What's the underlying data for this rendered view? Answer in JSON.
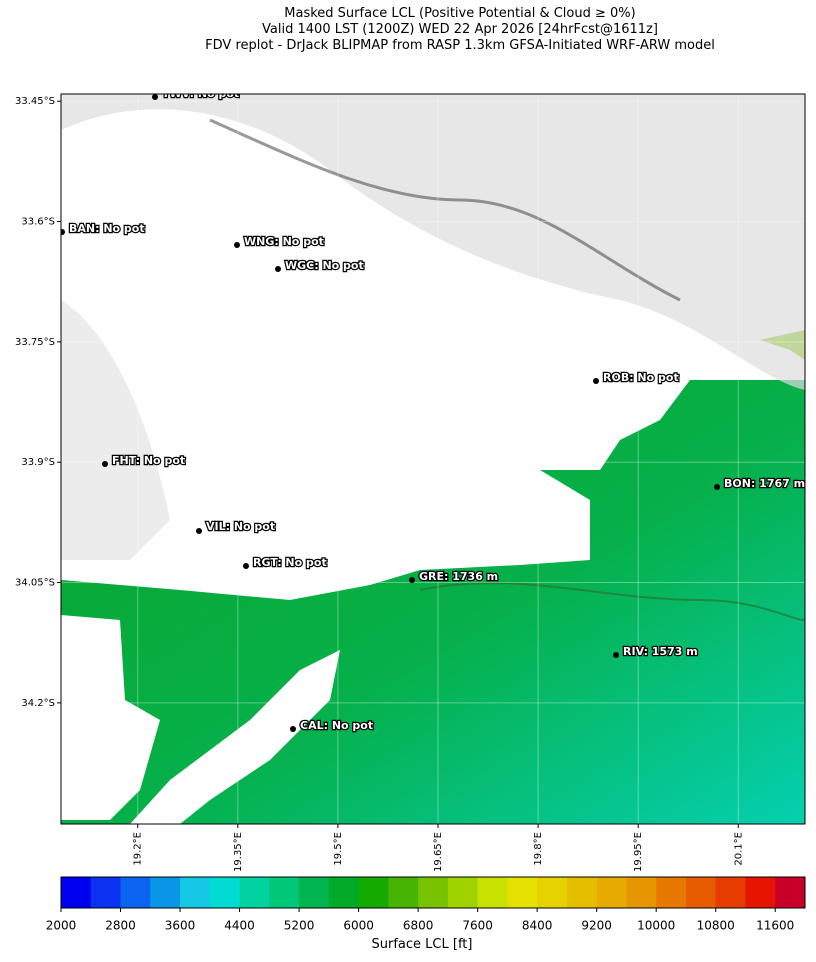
{
  "title": [
    "Masked Surface LCL (Positive Potential & Cloud ≥ 0%)",
    "Valid 1400 LST (1200Z) WED 22 Apr 2026 [24hrFcst@1611z]",
    "FDV replot - DrJack BLIPMAP from RASP 1.3km GFSA-Initiated WRF-ARW model"
  ],
  "map": {
    "xlim": [
      19.085,
      20.2
    ],
    "ylim": [
      -34.351,
      -33.441
    ],
    "xticks": [
      {
        "value": 19.2,
        "label": "19.2°E"
      },
      {
        "value": 19.35,
        "label": "19.35°E"
      },
      {
        "value": 19.5,
        "label": "19.5°E"
      },
      {
        "value": 19.65,
        "label": "19.65°E"
      },
      {
        "value": 19.8,
        "label": "19.8°E"
      },
      {
        "value": 19.95,
        "label": "19.95°E"
      },
      {
        "value": 20.1,
        "label": "20.1°E"
      }
    ],
    "yticks": [
      {
        "value": -33.45,
        "label": "33.45°S"
      },
      {
        "value": -33.6,
        "label": "33.6°S"
      },
      {
        "value": -33.75,
        "label": "33.75°S"
      },
      {
        "value": -33.9,
        "label": "33.9°S"
      },
      {
        "value": -34.05,
        "label": "34.05°S"
      },
      {
        "value": -34.2,
        "label": "34.2°S"
      }
    ],
    "grid": true,
    "stations": [
      "TWV: No pot",
      "BAN: No pot",
      "WNG: No pot",
      "WGC: No pot",
      "ROB: No pot",
      "FHT: No pot",
      "BON: 1767 m",
      "VIL: No pot",
      "RGT: No pot",
      "GRE: 1736 m",
      "RIV: 1573 m",
      "CAL: No pot"
    ]
  },
  "colorbar": {
    "lim": [
      2000,
      12000
    ],
    "ticks": [
      2000,
      2800,
      3600,
      4400,
      5200,
      6000,
      6800,
      7600,
      8400,
      9200,
      10000,
      10800,
      11600
    ],
    "colors": [
      "#0000f0",
      "#0a32f0",
      "#0a64f0",
      "#0a96e6",
      "#14c8e6",
      "#00dcd2",
      "#00d2a0",
      "#00c878",
      "#00b450",
      "#00aa28",
      "#14aa00",
      "#46b400",
      "#78c300",
      "#a0d200",
      "#c8e100",
      "#e6e100",
      "#e6d200",
      "#e6be00",
      "#e6aa00",
      "#e69600",
      "#e67800",
      "#e65a00",
      "#e63c00",
      "#e61400",
      "#c80028"
    ],
    "label": "Surface LCL [ft]"
  }
}
